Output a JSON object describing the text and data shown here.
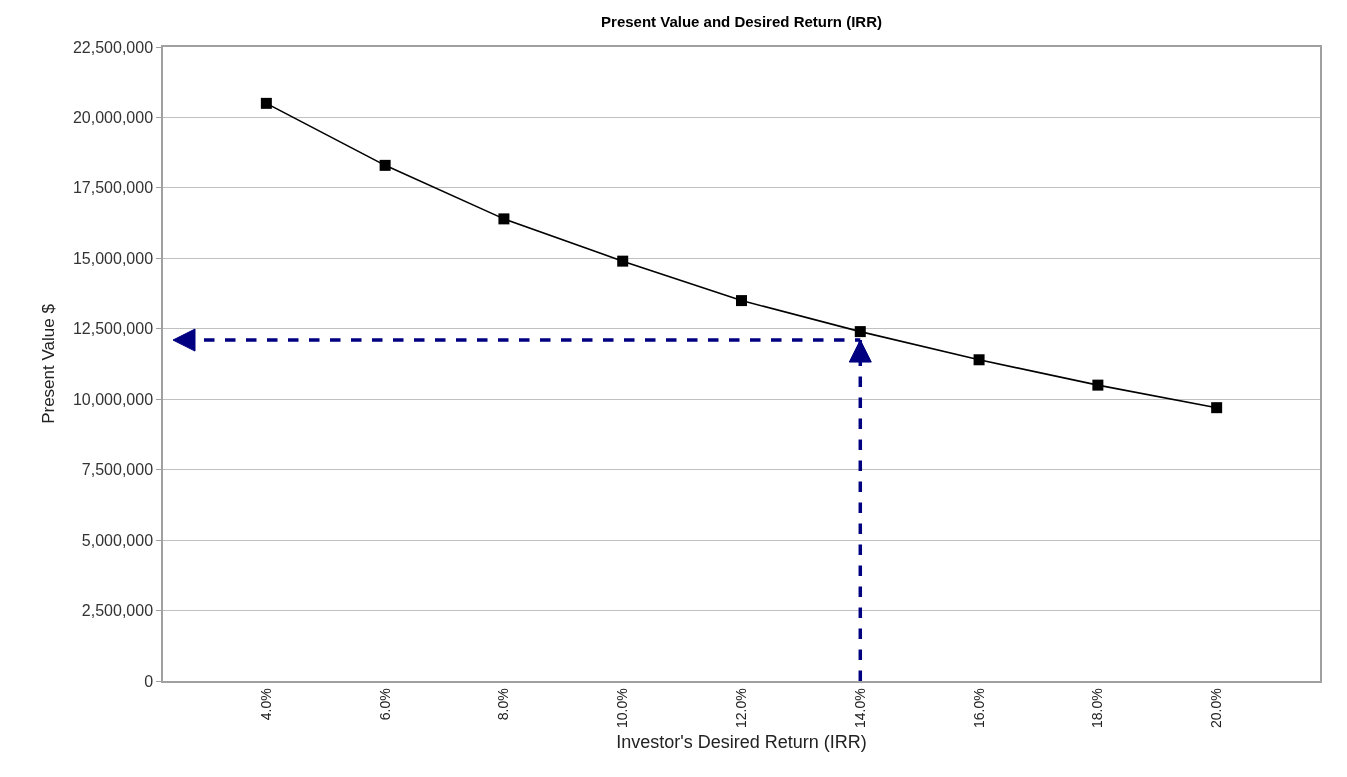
{
  "chart_data": {
    "type": "line",
    "title": "Present Value and Desired Return (IRR)",
    "xlabel": "Investor's Desired Return (IRR)",
    "ylabel": "Present Value $",
    "categories": [
      "4.0%",
      "6.0%",
      "8.0%",
      "10.0%",
      "12.0%",
      "14.0%",
      "16.0%",
      "18.0%",
      "20.0%"
    ],
    "series": [
      {
        "color": "#000000",
        "values": [
          20500000,
          18300000,
          16400000,
          14900000,
          13500000,
          12400000,
          11400000,
          10500000,
          9700000
        ]
      }
    ],
    "ylim": [
      0,
      22500000
    ],
    "yticks": [
      0,
      {
        "value": 2500000,
        "label": "2,500,000"
      },
      {
        "value": 5000000,
        "label": "5,000,000"
      },
      {
        "value": 7500000,
        "label": "7,500,000"
      },
      {
        "value": 10000000,
        "label": "10,000,000"
      },
      {
        "value": 12500000,
        "label": "12,500,000"
      },
      {
        "value": 15000000,
        "label": "15,000,000"
      },
      {
        "value": 17500000,
        "label": "17,500,000"
      },
      {
        "value": 20000000,
        "label": "20,000,000"
      },
      {
        "value": 22500000,
        "label": "22,500,000"
      }
    ],
    "grid": "y",
    "marker": "square",
    "line_style": "solid",
    "ref_lines": [
      {
        "axis": "y",
        "value": 12100000,
        "color": "#000080",
        "line_style": "dashed"
      },
      {
        "axis": "x",
        "value": "14.0%",
        "color": "#000080",
        "line_style": "dashed"
      }
    ]
  }
}
